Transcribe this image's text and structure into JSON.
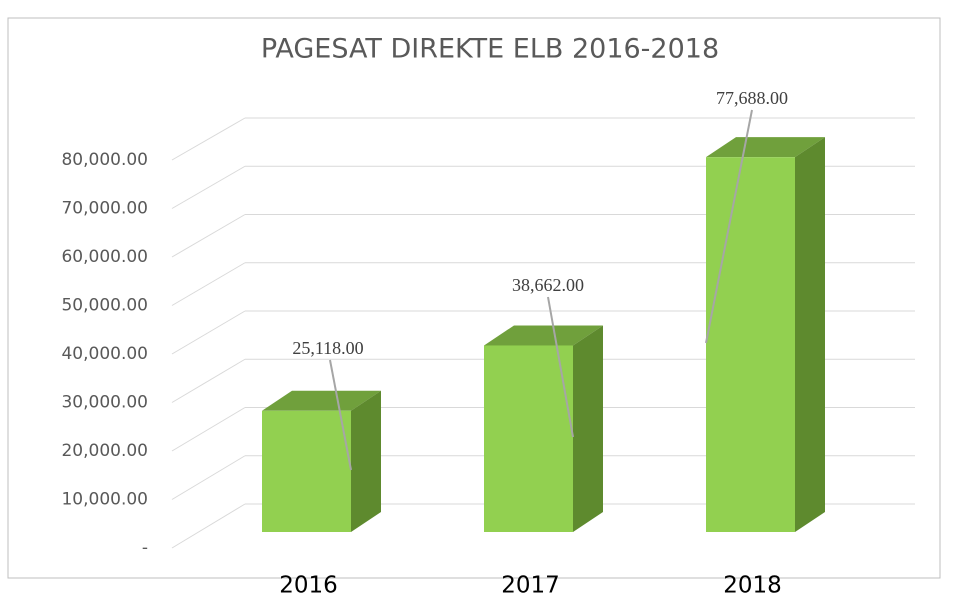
{
  "chart_data": {
    "type": "bar3d",
    "title": "PAGESAT DIREKTE ELB 2016-2018",
    "categories": [
      "2016",
      "2017",
      "2018"
    ],
    "values": [
      25118,
      38662,
      77688
    ],
    "value_labels": [
      "25,118.00",
      "38,662.00",
      "77,688.00"
    ],
    "color": "#92d050",
    "ylim": [
      0,
      80000
    ],
    "yticks": [
      {
        "value": 0,
        "label": "-"
      },
      {
        "value": 10000,
        "label": "10,000.00"
      },
      {
        "value": 20000,
        "label": "20,000.00"
      },
      {
        "value": 30000,
        "label": "30,000.00"
      },
      {
        "value": 40000,
        "label": "40,000.00"
      },
      {
        "value": 50000,
        "label": "50,000.00"
      },
      {
        "value": 60000,
        "label": "60,000.00"
      },
      {
        "value": 70000,
        "label": "70,000.00"
      },
      {
        "value": 80000,
        "label": "80,000.00"
      }
    ],
    "grid": true
  }
}
